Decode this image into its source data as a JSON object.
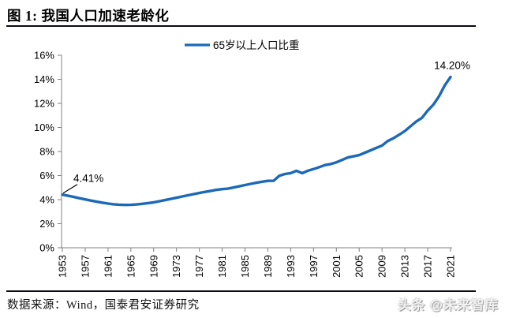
{
  "header": {
    "title": "图 1: 我国人口加速老龄化"
  },
  "footer": {
    "source": "数据来源：Wind，国泰君安证券研究",
    "watermark": "头条 @未来智库"
  },
  "chart_data": {
    "type": "line",
    "title": "图 1: 我国人口加速老龄化",
    "legend_position": "top-center",
    "grid": false,
    "axis_color": "#808080",
    "legend": [
      {
        "label": "65岁以上人口比重",
        "color": "#1B69B8"
      }
    ],
    "ylim": [
      0,
      16
    ],
    "ytick_step": 2,
    "ytick_labels": [
      "0%",
      "2%",
      "4%",
      "6%",
      "8%",
      "10%",
      "12%",
      "14%",
      "16%"
    ],
    "xtick_labels": [
      "1953",
      "1957",
      "1961",
      "1965",
      "1969",
      "1973",
      "1977",
      "1981",
      "1985",
      "1989",
      "1993",
      "1997",
      "2001",
      "2005",
      "2009",
      "2013",
      "2017",
      "2021"
    ],
    "x_years": [
      1953,
      1954,
      1955,
      1956,
      1957,
      1958,
      1959,
      1960,
      1961,
      1962,
      1963,
      1964,
      1965,
      1966,
      1967,
      1968,
      1969,
      1970,
      1971,
      1972,
      1973,
      1974,
      1975,
      1976,
      1977,
      1978,
      1979,
      1980,
      1981,
      1982,
      1983,
      1984,
      1985,
      1986,
      1987,
      1988,
      1989,
      1990,
      1991,
      1992,
      1993,
      1994,
      1995,
      1996,
      1997,
      1998,
      1999,
      2000,
      2001,
      2002,
      2003,
      2004,
      2005,
      2006,
      2007,
      2008,
      2009,
      2010,
      2011,
      2012,
      2013,
      2014,
      2015,
      2016,
      2017,
      2018,
      2019,
      2020,
      2021
    ],
    "series": [
      {
        "name": "65岁以上人口比重",
        "color": "#1B69B8",
        "values": [
          4.41,
          4.32,
          4.22,
          4.12,
          4.02,
          3.92,
          3.83,
          3.75,
          3.67,
          3.61,
          3.58,
          3.56,
          3.57,
          3.6,
          3.65,
          3.71,
          3.78,
          3.87,
          3.96,
          4.06,
          4.16,
          4.26,
          4.36,
          4.46,
          4.55,
          4.64,
          4.73,
          4.81,
          4.87,
          4.91,
          5.01,
          5.11,
          5.21,
          5.31,
          5.4,
          5.49,
          5.56,
          5.57,
          5.98,
          6.13,
          6.2,
          6.4,
          6.2,
          6.4,
          6.54,
          6.7,
          6.87,
          6.96,
          7.1,
          7.3,
          7.5,
          7.6,
          7.7,
          7.9,
          8.1,
          8.3,
          8.5,
          8.87,
          9.1,
          9.4,
          9.7,
          10.1,
          10.5,
          10.8,
          11.4,
          11.9,
          12.6,
          13.5,
          14.2
        ]
      }
    ],
    "annotations": [
      {
        "year": 1953,
        "value": 4.41,
        "label": "4.41%",
        "placement": "above-right",
        "leader_line": true
      },
      {
        "year": 2021,
        "value": 14.2,
        "label": "14.20%",
        "placement": "above",
        "leader_line": false
      }
    ]
  }
}
